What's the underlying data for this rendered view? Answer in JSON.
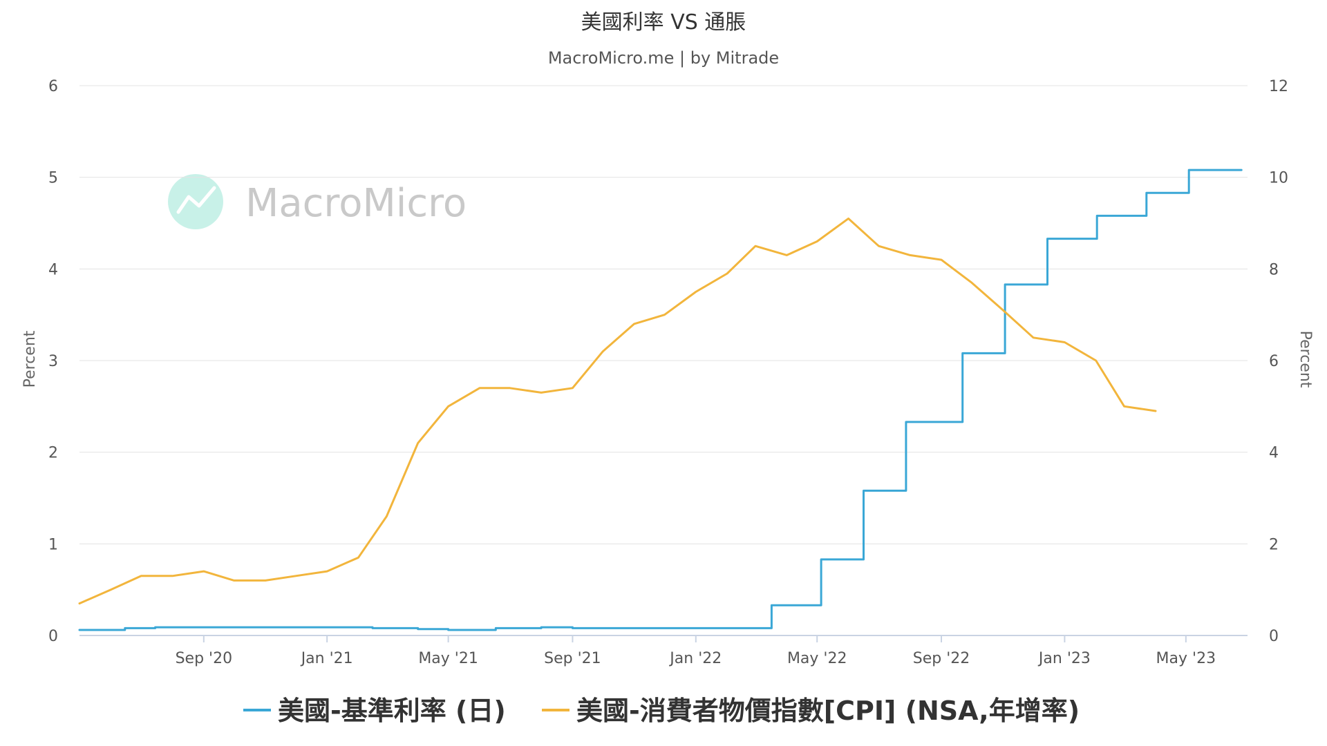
{
  "chart_data": {
    "type": "line",
    "title": "美國利率 VS 通脹",
    "subtitle": "MacroMicro.me | by Mitrade",
    "watermark": "MacroMicro",
    "y_left": {
      "label": "Percent",
      "range": [
        0,
        6
      ],
      "ticks": [
        "0",
        "1",
        "2",
        "3",
        "4",
        "5",
        "6"
      ]
    },
    "y_right": {
      "label": "Percent",
      "range": [
        0,
        12
      ],
      "ticks": [
        "0",
        "2",
        "4",
        "6",
        "8",
        "10",
        "12"
      ]
    },
    "x_axis": {
      "range": [
        "2020-05-01",
        "2023-07-01"
      ],
      "ticks": [
        {
          "date": "2020-09-01",
          "label": "Sep '20"
        },
        {
          "date": "2021-01-01",
          "label": "Jan '21"
        },
        {
          "date": "2021-05-01",
          "label": "May '21"
        },
        {
          "date": "2021-09-01",
          "label": "Sep '21"
        },
        {
          "date": "2022-01-01",
          "label": "Jan '22"
        },
        {
          "date": "2022-05-01",
          "label": "May '22"
        },
        {
          "date": "2022-09-01",
          "label": "Sep '22"
        },
        {
          "date": "2023-01-01",
          "label": "Jan '23"
        },
        {
          "date": "2023-05-01",
          "label": "May '23"
        }
      ]
    },
    "grid": true,
    "legend_position": "bottom",
    "series": [
      {
        "name": "美國-基準利率 (日)",
        "axis": "left",
        "color": "#3aa7d6",
        "step": true,
        "points": [
          [
            "2020-05-01",
            0.06
          ],
          [
            "2020-06-15",
            0.08
          ],
          [
            "2020-07-15",
            0.09
          ],
          [
            "2020-08-15",
            0.09
          ],
          [
            "2020-09-15",
            0.09
          ],
          [
            "2020-11-01",
            0.09
          ],
          [
            "2021-01-01",
            0.09
          ],
          [
            "2021-02-15",
            0.08
          ],
          [
            "2021-04-01",
            0.07
          ],
          [
            "2021-05-01",
            0.06
          ],
          [
            "2021-06-17",
            0.08
          ],
          [
            "2021-08-01",
            0.09
          ],
          [
            "2021-09-01",
            0.08
          ],
          [
            "2021-12-01",
            0.08
          ],
          [
            "2022-03-17",
            0.33
          ],
          [
            "2022-05-05",
            0.83
          ],
          [
            "2022-06-16",
            1.58
          ],
          [
            "2022-07-28",
            2.33
          ],
          [
            "2022-09-22",
            3.08
          ],
          [
            "2022-11-03",
            3.83
          ],
          [
            "2022-12-15",
            4.33
          ],
          [
            "2023-02-02",
            4.58
          ],
          [
            "2023-03-23",
            4.83
          ],
          [
            "2023-05-04",
            5.08
          ],
          [
            "2023-06-25",
            5.08
          ]
        ]
      },
      {
        "name": "美國-消費者物價指數[CPI] (NSA,年增率)",
        "axis": "right",
        "color": "#f2b53c",
        "step": false,
        "points": [
          [
            "2020-05-01",
            0.7
          ],
          [
            "2020-06-01",
            1.0
          ],
          [
            "2020-07-01",
            1.3
          ],
          [
            "2020-08-01",
            1.3
          ],
          [
            "2020-09-01",
            1.4
          ],
          [
            "2020-10-01",
            1.2
          ],
          [
            "2020-11-01",
            1.2
          ],
          [
            "2020-12-01",
            1.3
          ],
          [
            "2021-01-01",
            1.4
          ],
          [
            "2021-02-01",
            1.7
          ],
          [
            "2021-03-01",
            2.6
          ],
          [
            "2021-04-01",
            4.2
          ],
          [
            "2021-05-01",
            5.0
          ],
          [
            "2021-06-01",
            5.4
          ],
          [
            "2021-07-01",
            5.4
          ],
          [
            "2021-08-01",
            5.3
          ],
          [
            "2021-09-01",
            5.4
          ],
          [
            "2021-10-01",
            6.2
          ],
          [
            "2021-11-01",
            6.8
          ],
          [
            "2021-12-01",
            7.0
          ],
          [
            "2022-01-01",
            7.5
          ],
          [
            "2022-02-01",
            7.9
          ],
          [
            "2022-03-01",
            8.5
          ],
          [
            "2022-04-01",
            8.3
          ],
          [
            "2022-05-01",
            8.6
          ],
          [
            "2022-06-01",
            9.1
          ],
          [
            "2022-07-01",
            8.5
          ],
          [
            "2022-08-01",
            8.3
          ],
          [
            "2022-09-01",
            8.2
          ],
          [
            "2022-10-01",
            7.7
          ],
          [
            "2022-11-01",
            7.1
          ],
          [
            "2022-12-01",
            6.5
          ],
          [
            "2023-01-01",
            6.4
          ],
          [
            "2023-02-01",
            6.0
          ],
          [
            "2023-03-01",
            5.0
          ],
          [
            "2023-04-01",
            4.9
          ]
        ]
      }
    ]
  }
}
